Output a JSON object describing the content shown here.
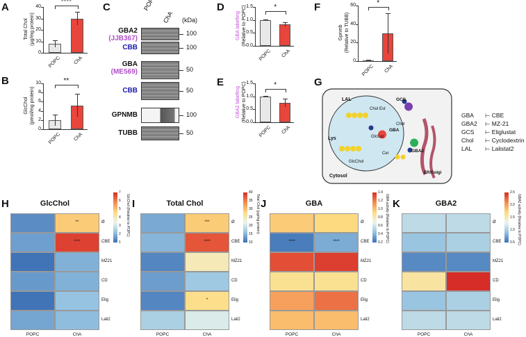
{
  "panel_labels": {
    "A": "A",
    "B": "B",
    "C": "C",
    "D": "D",
    "E": "E",
    "F": "F",
    "G": "G",
    "H": "H",
    "I": "I",
    "J": "J",
    "K": "K"
  },
  "groups": [
    "POPC",
    "ChA"
  ],
  "panelA": {
    "ylabel_1": "Total Chol",
    "ylabel_2": "(µg/mg protein)",
    "ticks": [
      "40",
      "30",
      "20",
      "10",
      "0"
    ],
    "sig": "****"
  },
  "panelB": {
    "ylabel_1": "GlcChol",
    "ylabel_2": "(pmol/mg protein)",
    "ticks": [
      "10",
      "8",
      "6",
      "4",
      "2",
      "0"
    ],
    "sig": "**"
  },
  "panelC": {
    "kda": "(kDa)",
    "lanes": [
      "POPC",
      "ChA"
    ],
    "blots": [
      {
        "name": "GBA2",
        "probe": "(JJB367)",
        "mw": "100"
      },
      {
        "name": "CBB",
        "probe": "",
        "mw": "100"
      },
      {
        "name": "GBA",
        "probe": "(ME569)",
        "mw": "50"
      },
      {
        "name": "CBB",
        "probe": "",
        "mw": "50"
      },
      {
        "name": "GPNMB",
        "probe": "",
        "mw": "100"
      },
      {
        "name": "TUBB",
        "probe": "",
        "mw": "50"
      }
    ]
  },
  "panelD": {
    "ylabel_1": "GBA labelling",
    "ylabel_2": "(Relative to POPC)",
    "ticks": [
      "1.5",
      "1.0",
      "0.5",
      "0.0"
    ],
    "sig": "*"
  },
  "panelE": {
    "ylabel_1": "GBA2 labelling",
    "ylabel_2": "(Relative to POPC)",
    "ticks": [
      "1.5",
      "1.0",
      "0.5",
      "0.0"
    ],
    "sig": "*"
  },
  "panelF": {
    "ylabel_1": "Gpnmb",
    "ylabel_2": "(Relative to TUBB)",
    "ticks": [
      "60",
      "40",
      "20",
      "0"
    ],
    "sig": "*"
  },
  "panelG": {
    "labels": {
      "lal": "LAL",
      "lys": "Lys",
      "cholest": "Chol Est",
      "glccer": "GlcCer",
      "cer": "Cer",
      "gba": "GBA",
      "glcchol": "GlcChol",
      "chol": "Chol",
      "gcs": "GCS",
      "gba2": "GBA2",
      "er": "ER/Golgi",
      "cytosol": "Cytosol"
    },
    "legend": [
      {
        "enzyme": "GBA",
        "inhibitor": "CBE"
      },
      {
        "enzyme": "GBA2",
        "inhibitor": "MZ-21"
      },
      {
        "enzyme": "GCS",
        "inhibitor": "Eliglustat"
      },
      {
        "enzyme": "Chol",
        "inhibitor": "Cyclodextrin"
      },
      {
        "enzyme": "LAL",
        "inhibitor": "Lalistat2"
      }
    ]
  },
  "heatmap_rows": [
    "Ø",
    "CBE",
    "MZ21",
    "CD",
    "Elig",
    "Lali2"
  ],
  "heatmaps": [
    {
      "title": "GlcChol",
      "cbar_title": "GlcChol (Relative to POPC)",
      "cbar_ticks": [
        "7",
        "6",
        "5",
        "4",
        "3",
        "2",
        "1"
      ],
      "cmin": 0.5,
      "cmax": 7.5,
      "POPC": [
        1.0,
        1.3,
        0.6,
        1.2,
        0.6,
        1.4
      ],
      "ChA": [
        5.0,
        7.2,
        1.6,
        1.6,
        1.9,
        1.8
      ],
      "stars_POPC": [
        "",
        "",
        "",
        "",
        "",
        ""
      ],
      "stars_ChA": [
        "**",
        "****",
        "",
        "",
        "",
        ""
      ]
    },
    {
      "title": "Total Chol",
      "cbar_title": "Total Chol (µg/mg protein)",
      "cbar_ticks": [
        "40",
        "35",
        "30",
        "25",
        "20",
        "15",
        "10"
      ],
      "cmin": 7,
      "cmax": 43,
      "POPC": [
        12,
        13,
        9,
        11,
        9,
        16
      ],
      "ChA": [
        30,
        40,
        25,
        15,
        28,
        20
      ],
      "stars_POPC": [
        "",
        "",
        "",
        "",
        "",
        ""
      ],
      "stars_ChA": [
        "***",
        "****",
        "",
        "",
        "*",
        ""
      ]
    },
    {
      "title": "GBA",
      "cbar_title": "GBA activity (Relative to POPC)",
      "cbar_ticks": [
        "1.4",
        "1.2",
        "1.0",
        "0.8",
        "0.6",
        "0.4",
        "0.2"
      ],
      "cmin": 0.1,
      "cmax": 1.5,
      "POPC": [
        1.0,
        0.15,
        1.4,
        0.9,
        1.15,
        1.05
      ],
      "ChA": [
        0.95,
        0.3,
        1.45,
        0.9,
        1.3,
        1.05
      ],
      "stars_POPC": [
        "",
        "****",
        "",
        "",
        "",
        ""
      ],
      "stars_ChA": [
        "",
        "****",
        "",
        "",
        "",
        ""
      ]
    },
    {
      "title": "GBA2",
      "cbar_title": "GBA2 activity (Relative to POPC)",
      "cbar_ticks": [
        "2.5",
        "2.0",
        "1.5",
        "1.0",
        "0.5"
      ],
      "cmin": 0.3,
      "cmax": 2.7,
      "POPC": [
        1.0,
        0.8,
        0.45,
        1.6,
        0.8,
        1.0
      ],
      "ChA": [
        1.0,
        0.9,
        0.45,
        2.7,
        0.9,
        1.0
      ],
      "stars_POPC": [
        "",
        "",
        "",
        "",
        "",
        ""
      ],
      "stars_ChA": [
        "",
        "",
        "",
        "",
        "",
        ""
      ]
    }
  ],
  "chart_data": [
    {
      "type": "bar",
      "title": "A",
      "categories": [
        "POPC",
        "ChA"
      ],
      "values": [
        8,
        30
      ],
      "errors": [
        3,
        6
      ],
      "ylabel": "Total Chol (µg/mg protein)",
      "ylim": [
        0,
        40
      ]
    },
    {
      "type": "bar",
      "title": "B",
      "categories": [
        "POPC",
        "ChA"
      ],
      "values": [
        2,
        5.2
      ],
      "errors": [
        1.2,
        2.5
      ],
      "ylabel": "GlcChol (pmol/mg protein)",
      "ylim": [
        0,
        10
      ]
    },
    {
      "type": "bar",
      "title": "D",
      "categories": [
        "POPC",
        "ChA"
      ],
      "values": [
        1.0,
        0.82
      ],
      "errors": [
        0.02,
        0.08
      ],
      "ylabel": "GBA labelling (Relative to POPC)",
      "ylim": [
        0,
        1.5
      ]
    },
    {
      "type": "bar",
      "title": "E",
      "categories": [
        "POPC",
        "ChA"
      ],
      "values": [
        1.0,
        0.75
      ],
      "errors": [
        0.01,
        0.15
      ],
      "ylabel": "GBA2 labelling (Relative to POPC)",
      "ylim": [
        0,
        1.5
      ]
    },
    {
      "type": "bar",
      "title": "F",
      "categories": [
        "POPC",
        "ChA"
      ],
      "values": [
        1,
        30
      ],
      "errors": [
        0.5,
        22
      ],
      "ylabel": "Gpnmb (Relative to TUBB)",
      "ylim": [
        0,
        60
      ]
    }
  ],
  "colors": {
    "red": "#e8453c",
    "grey": "#e8e8e8",
    "purple": "#b04fc8",
    "blue": "#1a1aa8",
    "gba_label": "#c44fd8"
  }
}
